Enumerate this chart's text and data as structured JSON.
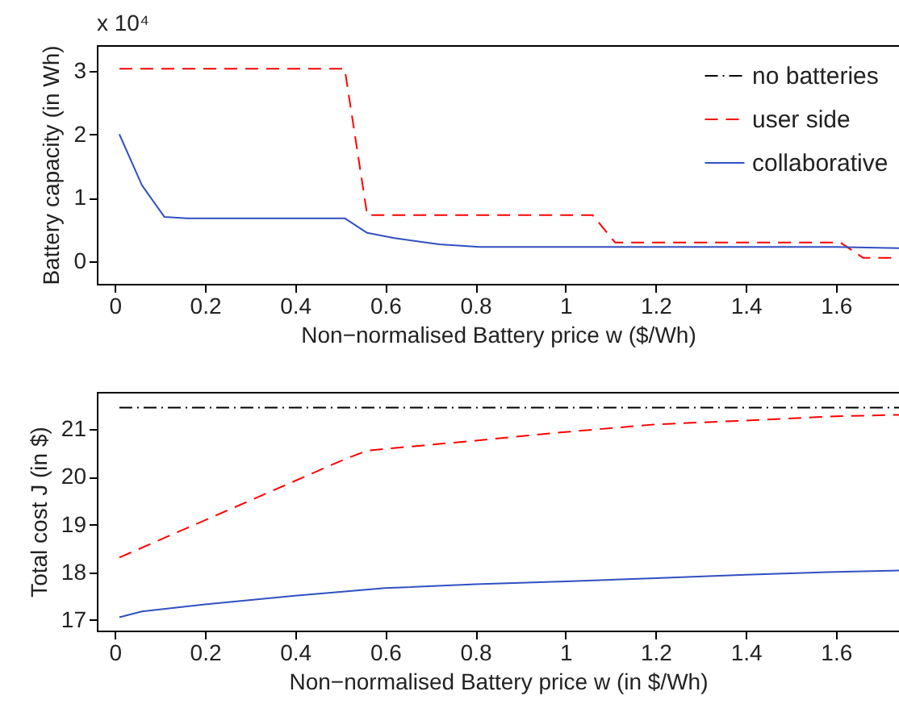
{
  "chart_data": [
    {
      "type": "line",
      "xlabel": "Non−normalised Battery price w ($/Wh)",
      "ylabel": "Battery capacity (in Wh)",
      "annotations": [
        "x 10⁴"
      ],
      "xlim": [
        -0.04,
        1.74
      ],
      "ylim": [
        -0.35,
        3.4
      ],
      "xticks": [
        0,
        0.2,
        0.4,
        0.6,
        0.8,
        1,
        1.2,
        1.4,
        1.6
      ],
      "yticks": [
        0,
        1,
        2,
        3
      ],
      "legend": "top right",
      "series": [
        {
          "name": "no batteries",
          "color": "#000000",
          "line_style": "dashdot"
        },
        {
          "name": "user side",
          "color": "#ff0000",
          "line_style": "dashed",
          "x": [
            0.01,
            0.51,
            0.56,
            1.06,
            1.11,
            1.61,
            1.66,
            1.74
          ],
          "values": [
            3.03,
            3.03,
            0.73,
            0.73,
            0.3,
            0.3,
            0.06,
            0.06
          ]
        },
        {
          "name": "collaborative",
          "color": "#3050c0",
          "line_style": "solid",
          "x": [
            0.01,
            0.06,
            0.11,
            0.16,
            0.51,
            0.56,
            0.62,
            0.72,
            0.81,
            1.6,
            1.74
          ],
          "values": [
            2.0,
            1.2,
            0.7,
            0.68,
            0.68,
            0.45,
            0.37,
            0.27,
            0.23,
            0.23,
            0.21
          ]
        }
      ]
    },
    {
      "type": "line",
      "xlabel": "Non−normalised Battery price w (in $/Wh)",
      "ylabel": "Total cost J (in $)",
      "xlim": [
        -0.04,
        1.74
      ],
      "ylim": [
        16.78,
        21.78
      ],
      "xticks": [
        0,
        0.2,
        0.4,
        0.6,
        0.8,
        1,
        1.2,
        1.4,
        1.6
      ],
      "yticks": [
        17,
        18,
        19,
        20,
        21
      ],
      "series": [
        {
          "color": "#000000",
          "line_style": "dashdot",
          "x": [
            0.01,
            1.74
          ],
          "values": [
            21.45,
            21.45
          ]
        },
        {
          "color": "#ff0000",
          "line_style": "dashed",
          "x": [
            0.01,
            0.51,
            0.56,
            0.8,
            1.0,
            1.2,
            1.4,
            1.6,
            1.74
          ],
          "values": [
            18.31,
            20.37,
            20.55,
            20.76,
            20.94,
            21.1,
            21.18,
            21.27,
            21.3
          ]
        },
        {
          "color": "#3050c0",
          "line_style": "solid",
          "x": [
            0.01,
            0.06,
            0.2,
            0.4,
            0.6,
            0.8,
            1.0,
            1.2,
            1.4,
            1.6,
            1.74
          ],
          "values": [
            17.06,
            17.18,
            17.33,
            17.51,
            17.67,
            17.75,
            17.81,
            17.88,
            17.95,
            18.01,
            18.04
          ]
        }
      ]
    }
  ]
}
